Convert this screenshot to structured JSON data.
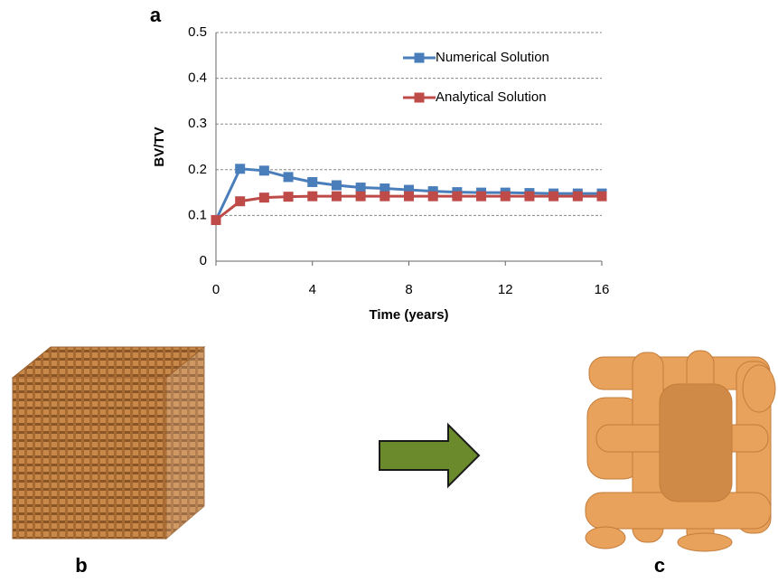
{
  "panel_labels": [
    "a",
    "b",
    "c"
  ],
  "chart_data": {
    "type": "line",
    "x_label": "Time (years)",
    "y_label": "BV/TV",
    "x": [
      0,
      1,
      2,
      3,
      4,
      5,
      6,
      7,
      8,
      9,
      10,
      11,
      12,
      13,
      14,
      15,
      16
    ],
    "series": [
      {
        "name": "Numerical Solution",
        "color": "#4a7ebb",
        "values": [
          0.09,
          0.202,
          0.198,
          0.184,
          0.173,
          0.166,
          0.161,
          0.159,
          0.156,
          0.153,
          0.151,
          0.15,
          0.15,
          0.149,
          0.148,
          0.148,
          0.148
        ]
      },
      {
        "name": "Analytical Solution",
        "color": "#be4b48",
        "values": [
          0.09,
          0.131,
          0.139,
          0.141,
          0.142,
          0.142,
          0.142,
          0.142,
          0.142,
          0.142,
          0.142,
          0.142,
          0.142,
          0.142,
          0.142,
          0.142,
          0.142
        ]
      }
    ],
    "xlim": [
      0,
      16
    ],
    "xticks": [
      0,
      4,
      8,
      12,
      16
    ],
    "ylim": [
      0,
      0.5
    ],
    "yticks": [
      0,
      0.1,
      0.2,
      0.3,
      0.4,
      0.5
    ],
    "grid": true,
    "legend": "upper right"
  }
}
